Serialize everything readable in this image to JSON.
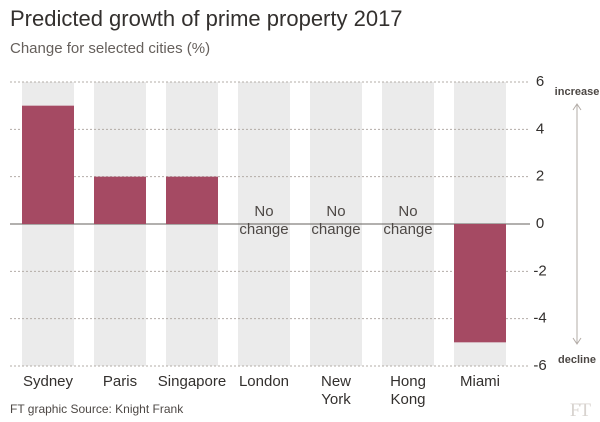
{
  "chart_data": {
    "type": "bar",
    "title": "Predicted growth of prime property 2017",
    "subtitle": "Change for selected cities (%)",
    "categories": [
      "Sydney",
      "Paris",
      "Singapore",
      "London",
      "New York",
      "Hong Kong",
      "Miami"
    ],
    "values": [
      5,
      2,
      2,
      0,
      0,
      0,
      -5
    ],
    "value_labels": [
      null,
      null,
      null,
      "No change",
      "No change",
      "No change",
      null
    ],
    "color": "#a54a63",
    "ylim": [
      -6,
      6
    ],
    "yticks": [
      6,
      4,
      2,
      0,
      -2,
      -4,
      -6
    ],
    "grid": true,
    "annotations": {
      "up": "increase",
      "down": "decline"
    },
    "source": "FT graphic Source: Knight Frank",
    "logo": "FT"
  }
}
